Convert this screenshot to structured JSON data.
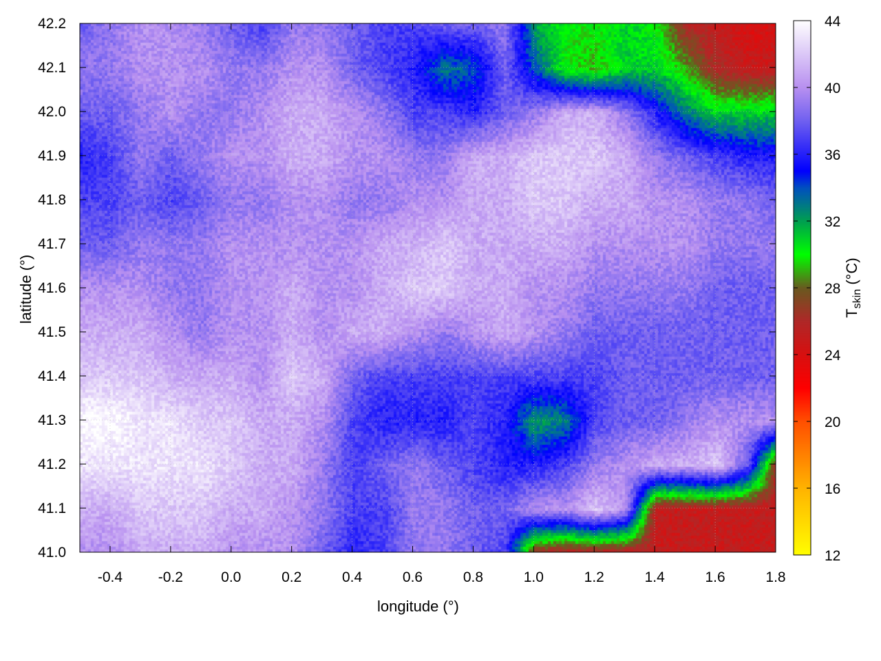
{
  "chart_data": {
    "type": "heatmap",
    "title": "",
    "xlabel": "longitude (°)",
    "ylabel": "latitude (°)",
    "colorbar_label_main": "T",
    "colorbar_label_sub": "skin",
    "colorbar_label_unit": " (°C)",
    "xlim": [
      -0.5,
      1.8
    ],
    "ylim": [
      41.0,
      42.2
    ],
    "clim": [
      12,
      44
    ],
    "x_ticks": [
      "-0.4",
      "-0.2",
      "0.0",
      "0.2",
      "0.4",
      "0.6",
      "0.8",
      "1.0",
      "1.2",
      "1.4",
      "1.6",
      "1.8"
    ],
    "y_ticks": [
      "41.0",
      "41.1",
      "41.2",
      "41.3",
      "41.4",
      "41.5",
      "41.6",
      "41.7",
      "41.8",
      "41.9",
      "42.0",
      "42.1",
      "42.2"
    ],
    "colorbar_ticks": [
      "12",
      "16",
      "20",
      "24",
      "28",
      "32",
      "36",
      "40",
      "44"
    ],
    "grid": true,
    "palette": [
      {
        "value": 12,
        "color": "#ffff00"
      },
      {
        "value": 16,
        "color": "#ffb400"
      },
      {
        "value": 20,
        "color": "#ff5000"
      },
      {
        "value": 22,
        "color": "#ff0000"
      },
      {
        "value": 24,
        "color": "#d81010"
      },
      {
        "value": 26,
        "color": "#b02828"
      },
      {
        "value": 28,
        "color": "#6a5a20"
      },
      {
        "value": 30,
        "color": "#00ff00"
      },
      {
        "value": 32,
        "color": "#00a050"
      },
      {
        "value": 34,
        "color": "#0050c0"
      },
      {
        "value": 35,
        "color": "#0000ff"
      },
      {
        "value": 38,
        "color": "#7060f0"
      },
      {
        "value": 40,
        "color": "#b890f0"
      },
      {
        "value": 44,
        "color": "#ffffff"
      }
    ],
    "grid_lon": [
      -0.5,
      -0.4,
      -0.3,
      -0.2,
      -0.1,
      0.0,
      0.1,
      0.2,
      0.3,
      0.4,
      0.5,
      0.6,
      0.7,
      0.8,
      0.9,
      1.0,
      1.1,
      1.2,
      1.3,
      1.4,
      1.5,
      1.6,
      1.7,
      1.8
    ],
    "grid_lat": [
      42.2,
      42.1,
      42.0,
      41.9,
      41.8,
      41.7,
      41.6,
      41.5,
      41.4,
      41.3,
      41.2,
      41.1,
      41.0
    ],
    "values": [
      [
        38,
        39,
        40,
        40,
        39,
        38,
        37,
        39,
        39,
        38,
        37,
        37,
        38,
        38,
        39,
        32,
        30,
        30,
        31,
        30,
        26,
        25,
        24,
        24
      ],
      [
        39,
        39,
        40,
        40,
        40,
        39,
        39,
        40,
        40,
        38,
        37,
        36,
        33,
        34,
        38,
        34,
        30,
        29,
        31,
        31,
        29,
        26,
        25,
        25
      ],
      [
        38,
        38,
        39,
        40,
        39,
        39,
        40,
        41,
        41,
        40,
        39,
        37,
        37,
        36,
        38,
        39,
        41,
        41,
        39,
        36,
        33,
        31,
        31,
        31
      ],
      [
        36,
        37,
        39,
        38,
        39,
        40,
        40,
        41,
        41,
        40,
        40,
        39,
        39,
        41,
        41,
        42,
        42,
        42,
        41,
        39,
        38,
        37,
        36,
        36
      ],
      [
        37,
        37,
        38,
        37,
        38,
        39,
        39,
        40,
        40,
        39,
        39,
        40,
        40,
        41,
        41,
        42,
        42,
        41,
        41,
        40,
        40,
        39,
        39,
        38
      ],
      [
        38,
        38,
        39,
        39,
        39,
        40,
        40,
        40,
        40,
        40,
        41,
        41,
        42,
        41,
        41,
        41,
        41,
        40,
        40,
        40,
        40,
        39,
        39,
        39
      ],
      [
        40,
        40,
        40,
        39,
        39,
        40,
        40,
        41,
        40,
        40,
        41,
        42,
        42,
        41,
        41,
        40,
        40,
        39,
        39,
        39,
        39,
        38,
        38,
        38
      ],
      [
        41,
        41,
        41,
        40,
        39,
        40,
        40,
        41,
        40,
        41,
        41,
        40,
        39,
        40,
        41,
        40,
        39,
        38,
        38,
        38,
        38,
        38,
        38,
        38
      ],
      [
        42,
        42,
        42,
        41,
        41,
        41,
        40,
        42,
        41,
        38,
        37,
        37,
        37,
        37,
        37,
        37,
        37,
        37,
        38,
        38,
        38,
        38,
        38,
        38
      ],
      [
        44,
        44,
        43,
        43,
        42,
        42,
        41,
        41,
        40,
        37,
        36,
        36,
        36,
        37,
        36,
        32,
        33,
        37,
        38,
        38,
        39,
        40,
        40,
        40
      ],
      [
        43,
        43,
        43,
        43,
        43,
        42,
        41,
        41,
        39,
        37,
        38,
        39,
        38,
        37,
        36,
        36,
        37,
        39,
        40,
        41,
        41,
        42,
        38,
        26
      ],
      [
        41,
        41,
        42,
        42,
        42,
        41,
        41,
        40,
        39,
        37,
        37,
        39,
        39,
        38,
        38,
        40,
        40,
        42,
        40,
        25,
        25,
        25,
        25,
        25
      ],
      [
        40,
        40,
        41,
        41,
        41,
        40,
        40,
        40,
        38,
        36,
        37,
        39,
        39,
        38,
        37,
        26,
        25,
        25,
        25,
        25,
        25,
        25,
        25,
        25
      ]
    ]
  }
}
